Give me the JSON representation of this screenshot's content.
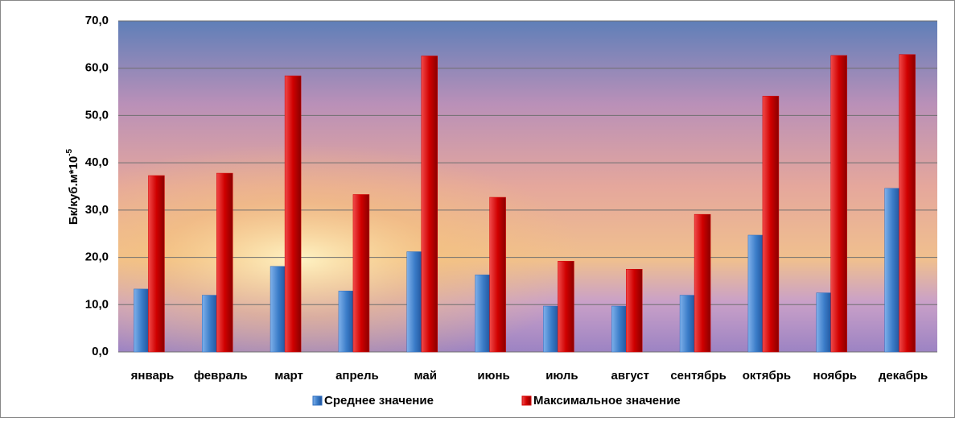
{
  "chart_data": {
    "type": "bar",
    "ylabel": "Бк/куб.м*10",
    "ylabel_sup": "-5",
    "categories": [
      "январь",
      "февраль",
      "март",
      "апрель",
      "май",
      "июнь",
      "июль",
      "август",
      "сентябрь",
      "октябрь",
      "ноябрь",
      "декабрь"
    ],
    "series": [
      {
        "name": "Среднее значение",
        "color": "#2f6fc0",
        "values": [
          13.3,
          12.0,
          18.1,
          12.9,
          21.2,
          16.3,
          9.7,
          9.7,
          12.0,
          24.7,
          12.5,
          34.6
        ]
      },
      {
        "name": "Максимальное значение",
        "color": "#d40000",
        "values": [
          37.3,
          37.8,
          58.4,
          33.3,
          62.6,
          32.7,
          19.2,
          17.5,
          29.1,
          54.1,
          62.7,
          62.9
        ]
      }
    ],
    "ylim": [
      0,
      70
    ],
    "yticks": [
      {
        "value": 0,
        "label": "0,0"
      },
      {
        "value": 10,
        "label": "10,0"
      },
      {
        "value": 20,
        "label": "20,0"
      },
      {
        "value": 30,
        "label": "30,0"
      },
      {
        "value": 40,
        "label": "40,0"
      },
      {
        "value": 50,
        "label": "50,0"
      },
      {
        "value": 60,
        "label": "60,0"
      },
      {
        "value": 70,
        "label": "70,0"
      }
    ],
    "grid": true,
    "legend": "bottom"
  }
}
